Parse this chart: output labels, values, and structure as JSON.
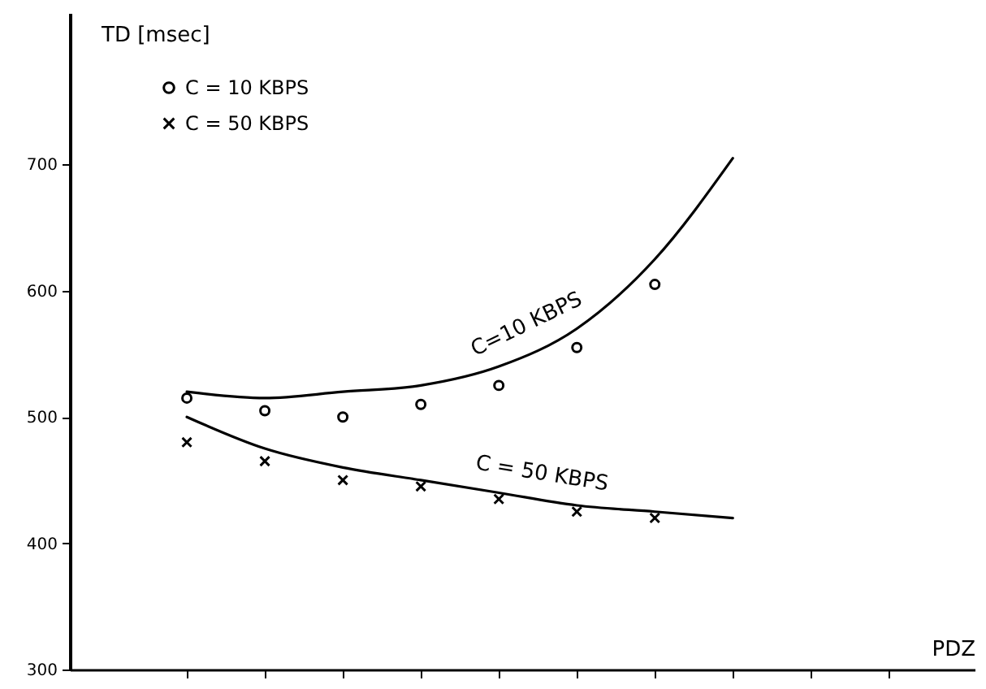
{
  "chart_data": {
    "type": "scatter",
    "xlabel": "PDZ",
    "ylabel": "TD [msec]",
    "categories": [
      null,
      null,
      null,
      null,
      null,
      null,
      null,
      null,
      null,
      null
    ],
    "ylim": [
      300,
      820
    ],
    "yticks": [
      300,
      400,
      500,
      600,
      700
    ],
    "legend": "top left",
    "line_style": "solid",
    "series": [
      {
        "name": "C = 10 KBPS",
        "marker": "circle",
        "color": "#000000",
        "values": [
          515,
          505,
          500,
          510,
          525,
          555,
          605,
          null,
          null,
          null
        ]
      },
      {
        "name": "C = 50 KBPS",
        "marker": "cross",
        "color": "#000000",
        "values": [
          480,
          465,
          450,
          445,
          435,
          425,
          420,
          null,
          null,
          null
        ]
      },
      {
        "name": "C=10 KBPS",
        "type": "line",
        "color": "#000000",
        "values": [
          520,
          515,
          520,
          525,
          540,
          570,
          625,
          705,
          null,
          null
        ]
      },
      {
        "name": "C = 50 KBPS",
        "type": "line",
        "color": "#000000",
        "values": [
          500,
          475,
          460,
          450,
          440,
          430,
          425,
          420,
          null,
          null
        ]
      }
    ]
  }
}
